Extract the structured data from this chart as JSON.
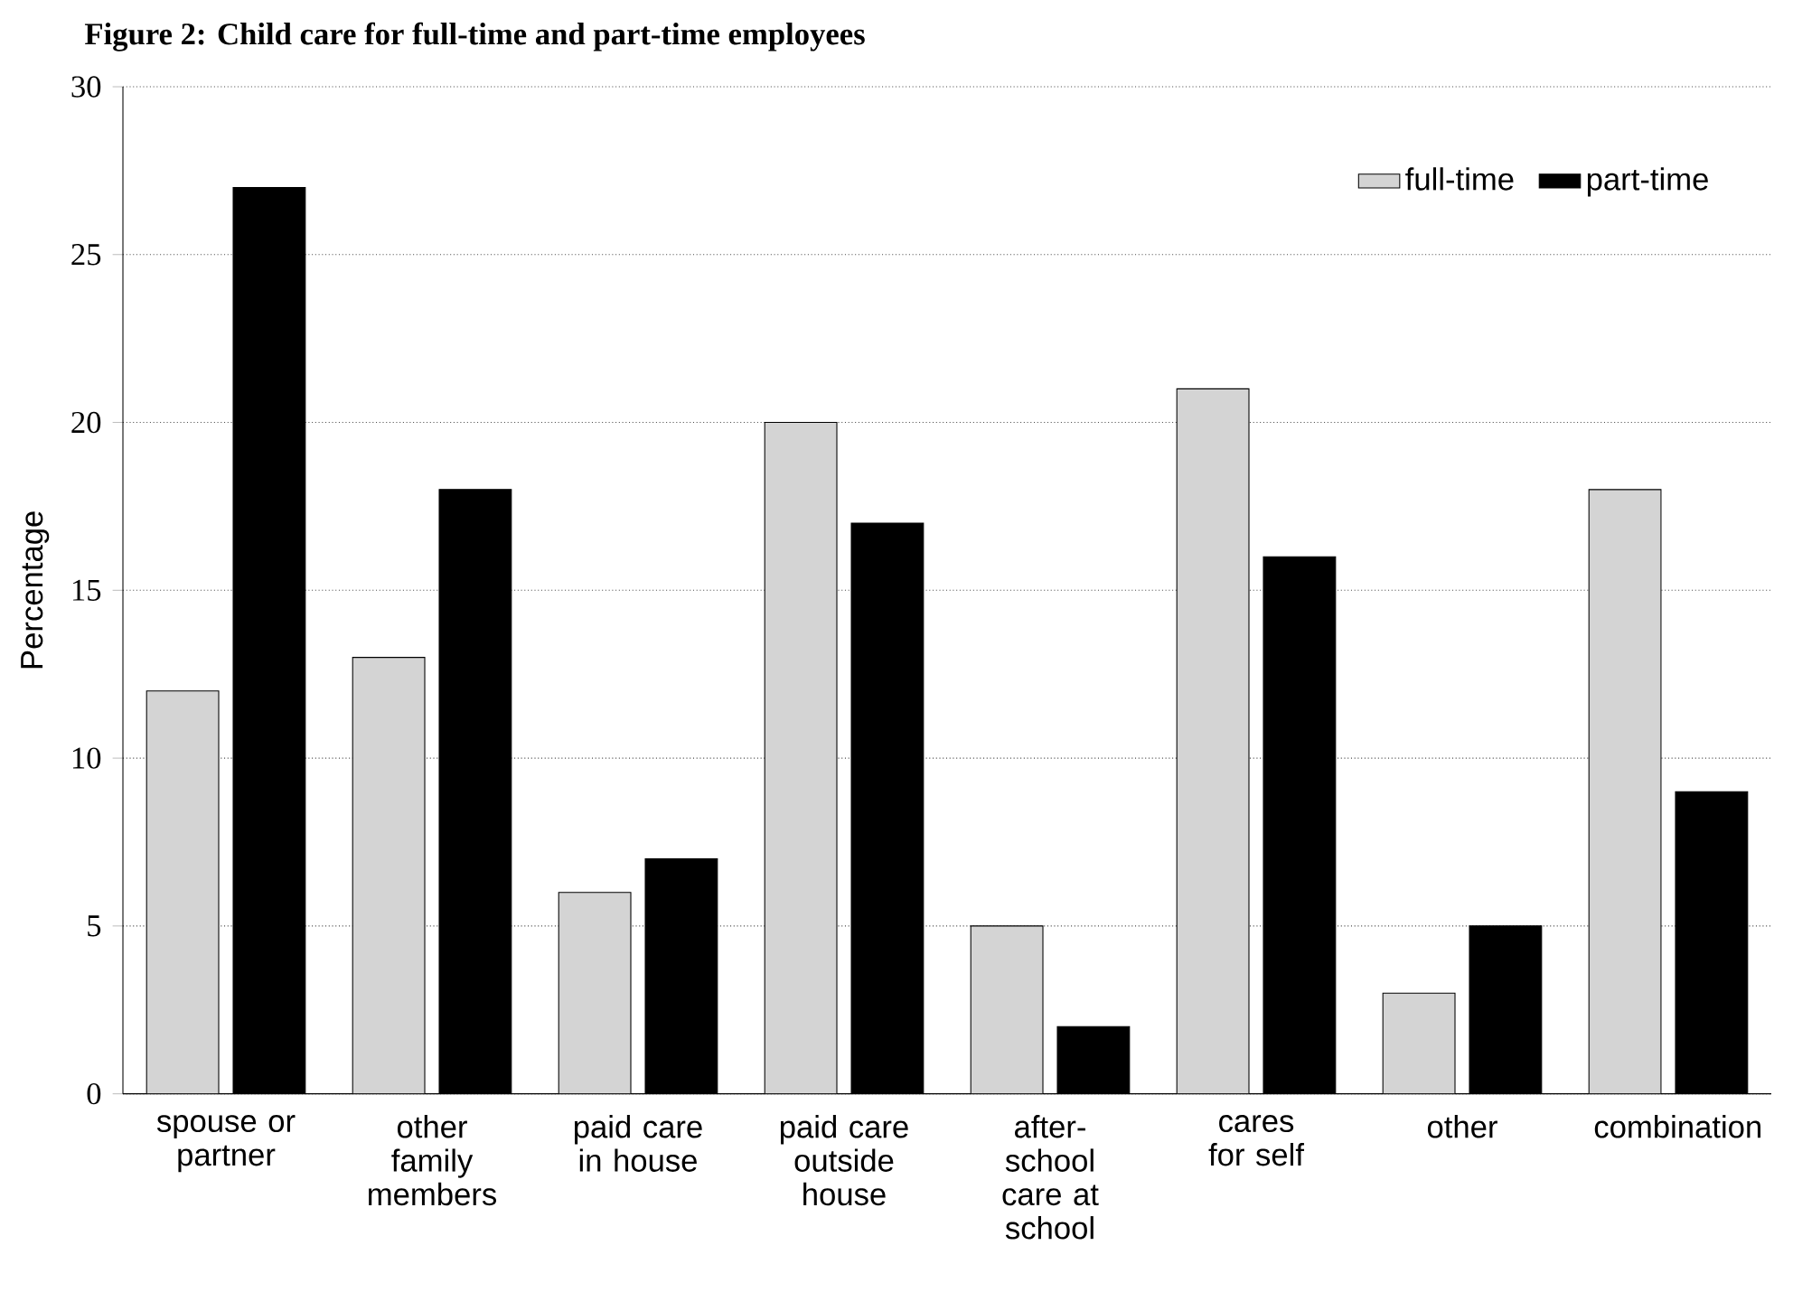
{
  "chart_data": {
    "type": "bar",
    "title": "Figure 2: Child care for full-time and part-time employees",
    "ylabel": "Percentage",
    "categories": [
      "spouse or partner",
      "other family members",
      "paid care in house",
      "paid care outside house",
      "after-school care at school",
      "cares for self",
      "other",
      "combination"
    ],
    "series": [
      {
        "name": "full-time",
        "color": "#d4d4d4",
        "values": [
          12,
          13,
          6,
          20,
          5,
          21,
          3,
          18
        ]
      },
      {
        "name": "part-time",
        "color": "#000000",
        "values": [
          27,
          18,
          7,
          17,
          2,
          16,
          5,
          9
        ]
      }
    ],
    "ylim": [
      0,
      30
    ],
    "yticks": [
      0,
      5,
      10,
      15,
      20,
      25,
      30
    ],
    "grid": "y",
    "legend": "top right"
  }
}
